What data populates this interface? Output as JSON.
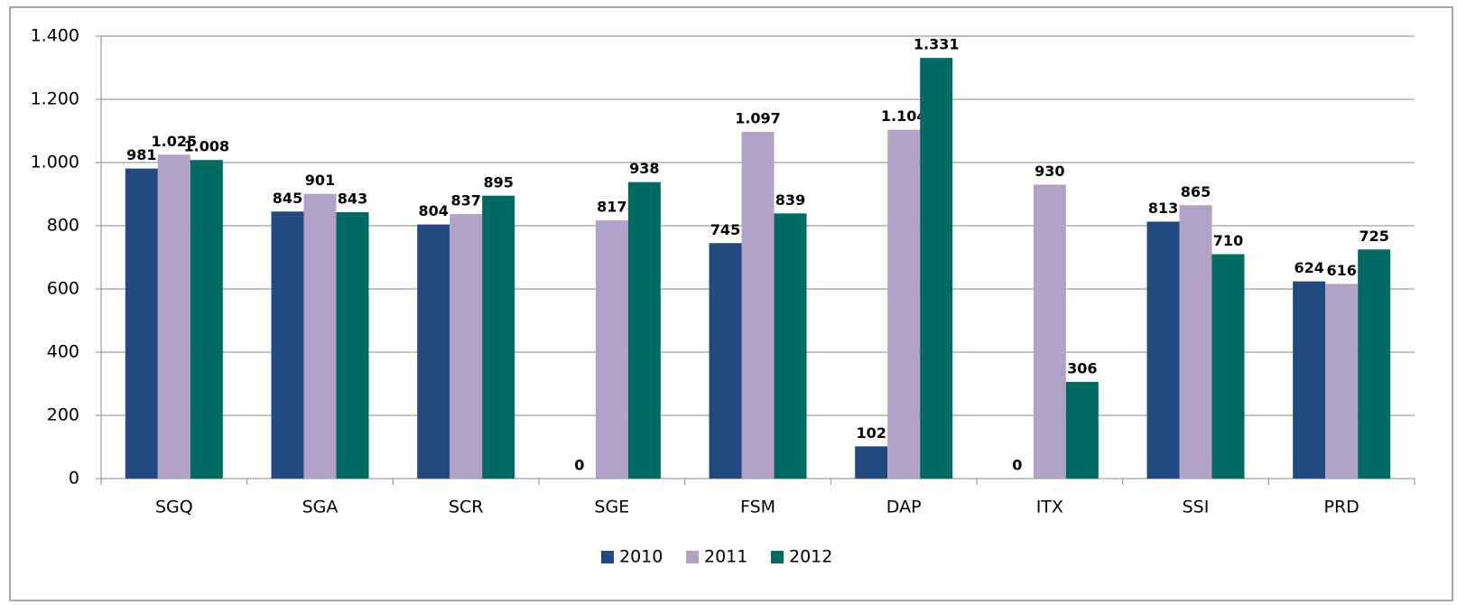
{
  "chart_data": {
    "type": "bar",
    "categories": [
      "SGQ",
      "SGA",
      "SCR",
      "SGE",
      "FSM",
      "DAP",
      "ITX",
      "SSI",
      "PRD"
    ],
    "series": [
      {
        "name": "2010",
        "color": "#234a7e",
        "values": [
          981,
          845,
          804,
          0,
          745,
          102,
          0,
          813,
          624
        ],
        "value_labels": [
          "981",
          "845",
          "804",
          "0",
          "745",
          "102",
          "0",
          "813",
          "624"
        ]
      },
      {
        "name": "2011",
        "color": "#b3a2c7",
        "values": [
          1025,
          901,
          837,
          817,
          1097,
          1104,
          930,
          865,
          616
        ],
        "value_labels": [
          "1.025",
          "901",
          "837",
          "817",
          "1.097",
          "1.104",
          "930",
          "865",
          "616"
        ]
      },
      {
        "name": "2012",
        "color": "#006b63",
        "values": [
          1008,
          843,
          895,
          938,
          839,
          1331,
          306,
          710,
          725
        ],
        "value_labels": [
          "1.008",
          "843",
          "895",
          "938",
          "839",
          "1.331",
          "306",
          "710",
          "725"
        ]
      }
    ],
    "ylim": [
      0,
      1400
    ],
    "yticks": [
      0,
      200,
      400,
      600,
      800,
      {
        "value": 1000,
        "label": "1.000"
      },
      {
        "value": 1200,
        "label": "1.200"
      },
      {
        "value": 1400,
        "label": "1.400"
      }
    ],
    "grid": true,
    "legend": "bottom"
  }
}
